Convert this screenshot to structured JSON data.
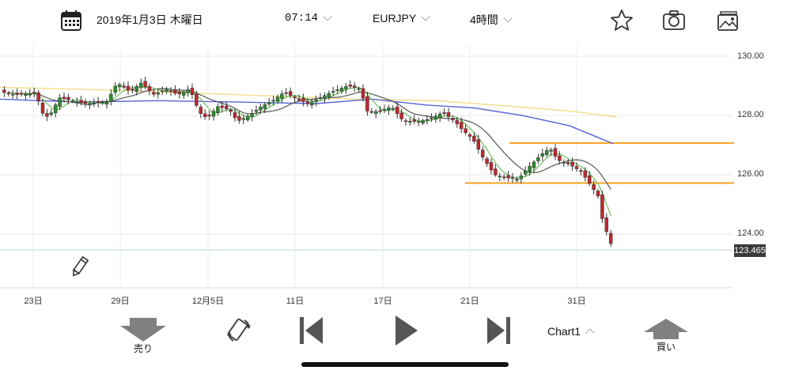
{
  "topbar": {
    "date": "2019年1月3日 木曜日",
    "time": "07:14",
    "pair": "EURJPY",
    "timeframe": "4時間",
    "icons": [
      "calendar-icon",
      "star-icon",
      "camera-icon",
      "image-icon"
    ]
  },
  "chart": {
    "y_axis": [
      "130.00",
      "128.00",
      "126.00",
      "124.00"
    ],
    "x_axis": [
      "23日",
      "29日",
      "12月5日",
      "11日",
      "17日",
      "21日",
      "31日"
    ],
    "current_price": "123.465"
  },
  "bottombar": {
    "sell_label": "売り",
    "buy_label": "買い",
    "chart_selector": "Chart1"
  },
  "colors": {
    "up": "#2e8b2e",
    "down": "#c0282d",
    "ma_short": "#6fbf5a",
    "ma_mid": "#555555",
    "ma_blue": "#5a62d6",
    "ma_yellow": "#f2dc8a",
    "hline": "#f5a023"
  }
}
